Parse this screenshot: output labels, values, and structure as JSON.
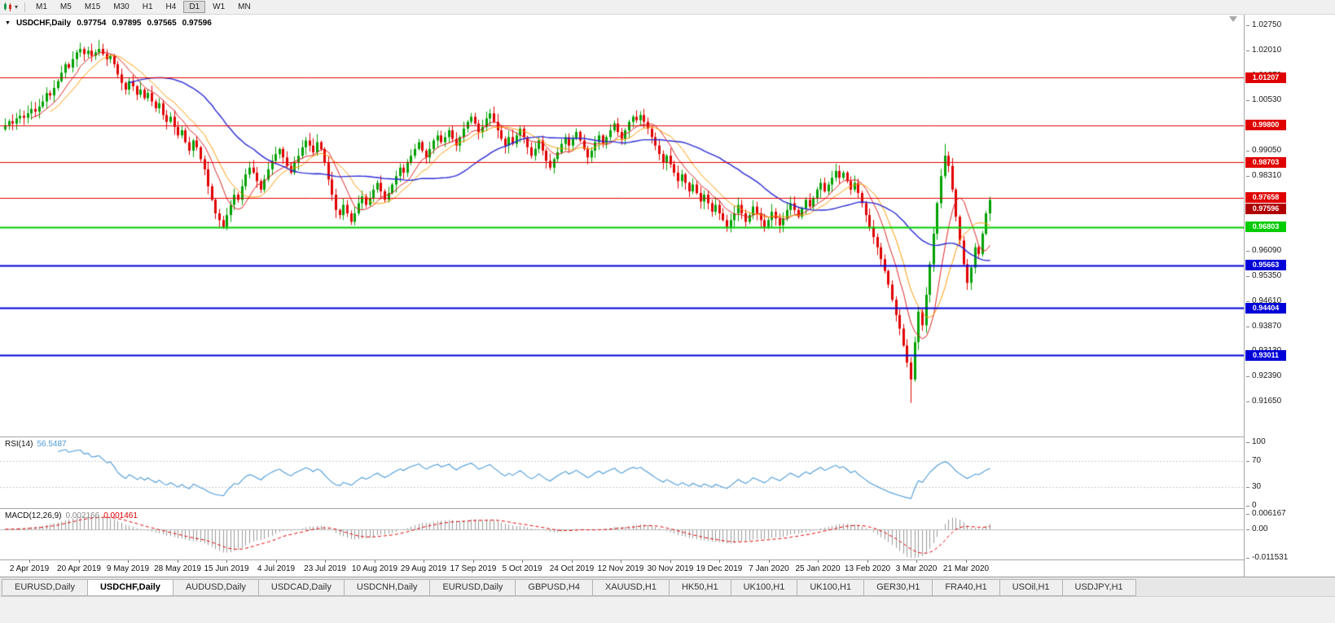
{
  "colors": {
    "up": "#00a100",
    "down": "#e00000",
    "background": "#ffffff",
    "axis_border": "#a6a6a6"
  },
  "toolbar": {
    "chart_icon": "candlestick-chart",
    "caret": "▾",
    "periods": [
      "M1",
      "M5",
      "M15",
      "M30",
      "H1",
      "H4",
      "D1",
      "W1",
      "MN"
    ],
    "active_period": "D1"
  },
  "chart": {
    "title": {
      "symbol_period": "USDCHF,Daily",
      "open": "0.97754",
      "high": "0.97895",
      "low": "0.97565",
      "close": "0.97596"
    },
    "price_axis": {
      "ticks": [
        "1.02750",
        "1.02010",
        "1.01270",
        "1.00530",
        "0.99790",
        "0.99050",
        "0.98310",
        "0.97570",
        "0.96830",
        "0.96090",
        "0.95350",
        "0.94610",
        "0.93870",
        "0.93130",
        "0.92390",
        "0.91650"
      ]
    }
  },
  "rsi": {
    "label": "RSI(14)",
    "value_text": "56.5487"
  },
  "macd": {
    "label": "MACD(12,26,9)",
    "main_value": "0.002166",
    "signal_value": "0.001461"
  },
  "tabs": [
    {
      "label": "EURUSD,Daily",
      "active": false
    },
    {
      "label": "USDCHF,Daily",
      "active": true
    },
    {
      "label": "AUDUSD,Daily",
      "active": false
    },
    {
      "label": "USDCAD,Daily",
      "active": false
    },
    {
      "label": "USDCNH,Daily",
      "active": false
    },
    {
      "label": "EURUSD,Daily",
      "active": false
    },
    {
      "label": "GBPUSD,H4",
      "active": false
    },
    {
      "label": "XAUUSD,H1",
      "active": false
    },
    {
      "label": "HK50,H1",
      "active": false
    },
    {
      "label": "UK100,H1",
      "active": false
    },
    {
      "label": "UK100,H1",
      "active": false
    },
    {
      "label": "GER30,H1",
      "active": false
    },
    {
      "label": "FRA40,H1",
      "active": false
    },
    {
      "label": "USOil,H1",
      "active": false
    },
    {
      "label": "USDJPY,H1",
      "active": false
    }
  ],
  "chart_data": {
    "type": "candlestick",
    "symbol": "USDCHF",
    "timeframe": "Daily",
    "ohlc_last": {
      "open": 0.97754,
      "high": 0.97895,
      "low": 0.97565,
      "close": 0.97596
    },
    "price_axis": {
      "top": 1.0275,
      "bottom": 0.9165,
      "tick_step": 0.0074
    },
    "dates": [
      "2 Apr 2019",
      "20 Apr 2019",
      "9 May 2019",
      "28 May 2019",
      "15 Jun 2019",
      "4 Jul 2019",
      "23 Jul 2019",
      "10 Aug 2019",
      "29 Aug 2019",
      "17 Sep 2019",
      "5 Oct 2019",
      "24 Oct 2019",
      "12 Nov 2019",
      "30 Nov 2019",
      "19 Dec 2019",
      "7 Jan 2020",
      "25 Jan 2020",
      "13 Feb 2020",
      "3 Mar 2020",
      "21 Mar 2020"
    ],
    "closes": [
      0.998,
      0.9992,
      0.9985,
      1.0,
      1.0008,
      1.0002,
      1.0015,
      1.0028,
      1.002,
      1.0035,
      1.005,
      1.0075,
      1.0068,
      1.009,
      1.011,
      1.0135,
      1.016,
      1.015,
      1.0175,
      1.0195,
      1.0205,
      1.019,
      1.02,
      1.0185,
      1.0195,
      1.0205,
      1.019,
      1.0175,
      1.0185,
      1.016,
      1.013,
      1.0105,
      1.0085,
      1.011,
      1.0095,
      1.007,
      1.0085,
      1.006,
      1.0075,
      1.005,
      1.003,
      1.0045,
      1.001,
      0.999,
      1.0005,
      0.9975,
      0.995,
      0.9965,
      0.993,
      0.9905,
      0.9935,
      0.9915,
      0.988,
      0.985,
      0.98,
      0.976,
      0.972,
      0.97,
      0.968,
      0.9715,
      0.9745,
      0.9775,
      0.976,
      0.98,
      0.9835,
      0.9855,
      0.984,
      0.9815,
      0.979,
      0.982,
      0.985,
      0.9875,
      0.9895,
      0.991,
      0.9885,
      0.986,
      0.984,
      0.987,
      0.989,
      0.9915,
      0.9935,
      0.992,
      0.99,
      0.993,
      0.991,
      0.987,
      0.982,
      0.9775,
      0.973,
      0.9715,
      0.9745,
      0.972,
      0.9695,
      0.972,
      0.975,
      0.977,
      0.9745,
      0.9765,
      0.979,
      0.981,
      0.9785,
      0.976,
      0.978,
      0.9805,
      0.983,
      0.9855,
      0.984,
      0.987,
      0.989,
      0.991,
      0.993,
      0.9905,
      0.9885,
      0.991,
      0.9935,
      0.995,
      0.993,
      0.9945,
      0.9965,
      0.994,
      0.992,
      0.9945,
      0.997,
      0.999,
      1.0005,
      0.9985,
      0.996,
      0.9975,
      1.0,
      1.0015,
      0.999,
      0.9965,
      0.994,
      0.992,
      0.9945,
      0.9925,
      0.995,
      0.997,
      0.9945,
      0.9915,
      0.989,
      0.991,
      0.9935,
      0.9905,
      0.9875,
      0.9855,
      0.988,
      0.99,
      0.9925,
      0.9945,
      0.992,
      0.994,
      0.996,
      0.9935,
      0.991,
      0.9885,
      0.9905,
      0.993,
      0.995,
      0.9925,
      0.9945,
      0.9965,
      0.9985,
      0.996,
      0.994,
      0.9965,
      0.999,
      1.0005,
      0.9995,
      1.001,
      0.999,
      0.997,
      0.9945,
      0.992,
      0.9895,
      0.987,
      0.989,
      0.9865,
      0.984,
      0.9815,
      0.9835,
      0.981,
      0.9785,
      0.9805,
      0.978,
      0.9755,
      0.9775,
      0.975,
      0.9725,
      0.9745,
      0.972,
      0.97,
      0.968,
      0.97,
      0.972,
      0.9745,
      0.972,
      0.9695,
      0.9715,
      0.974,
      0.972,
      0.97,
      0.968,
      0.97,
      0.9725,
      0.9705,
      0.9685,
      0.9705,
      0.973,
      0.975,
      0.973,
      0.971,
      0.9735,
      0.976,
      0.974,
      0.9765,
      0.979,
      0.981,
      0.9785,
      0.9805,
      0.9825,
      0.9845,
      0.9825,
      0.984,
      0.9815,
      0.979,
      0.981,
      0.978,
      0.975,
      0.9715,
      0.968,
      0.965,
      0.962,
      0.9585,
      0.955,
      0.951,
      0.9465,
      0.942,
      0.938,
      0.933,
      0.928,
      0.923,
      0.934,
      0.943,
      0.939,
      0.948,
      0.957,
      0.966,
      0.975,
      0.983,
      0.989,
      0.986,
      0.979,
      0.971,
      0.964,
      0.957,
      0.9515,
      0.956,
      0.962,
      0.96,
      0.966,
      0.972,
      0.976
    ],
    "wick_overrides": [
      {
        "i": 25,
        "high": 1.0232
      },
      {
        "i": 241,
        "low": 0.9161
      },
      {
        "i": 250,
        "high": 0.9925
      }
    ],
    "moving_averages": [
      {
        "name": "ma-fast",
        "period": 8,
        "color": "#dd2222",
        "width": 1
      },
      {
        "name": "ma-mid",
        "period": 13,
        "color": "#ff9900",
        "width": 1
      },
      {
        "name": "ma-slow",
        "period": 34,
        "color": "#2a2ad4",
        "width": 1.4
      }
    ],
    "h_lines": [
      {
        "value": 1.01207,
        "label": "1.01207",
        "color": "#e00000",
        "width": 1
      },
      {
        "value": 0.998,
        "label": "0.99800",
        "color": "#e00000",
        "width": 1
      },
      {
        "value": 0.98703,
        "label": "0.98703",
        "color": "#e00000",
        "width": 1
      },
      {
        "value": 0.97658,
        "label": "0.97658",
        "color": "#e00000",
        "width": 1
      },
      {
        "value": 0.96803,
        "label": "0.96803",
        "color": "#00cc00",
        "width": 2
      },
      {
        "value": 0.95663,
        "label": "0.95663",
        "color": "#0000d8",
        "width": 2
      },
      {
        "value": 0.94404,
        "label": "0.94404",
        "color": "#0000d8",
        "width": 2
      },
      {
        "value": 0.93011,
        "label": "0.93011",
        "color": "#0000d8",
        "width": 2
      }
    ],
    "current_price": {
      "value": 0.97596,
      "label": "0.97596",
      "color": "#b00000"
    },
    "rsi": {
      "period": 14,
      "last": 56.5487,
      "color": "#4d9bd6",
      "levels": [
        70,
        30
      ],
      "axis": [
        {
          "label": "100",
          "value": 100
        },
        {
          "label": "70",
          "value": 70
        },
        {
          "label": "30",
          "value": 30
        },
        {
          "label": "0",
          "value": 0
        }
      ]
    },
    "macd": {
      "fast": 12,
      "slow": 26,
      "signal": 9,
      "last_main": 0.002166,
      "last_signal": 0.001461,
      "hist_color": "#9a9a9a",
      "signal_color": "#e00000",
      "axis": [
        {
          "label": "0.006167",
          "value": 0.006167
        },
        {
          "label": "0.00",
          "value": 0
        },
        {
          "label": "-0.011531",
          "value": -0.011531
        }
      ]
    }
  }
}
